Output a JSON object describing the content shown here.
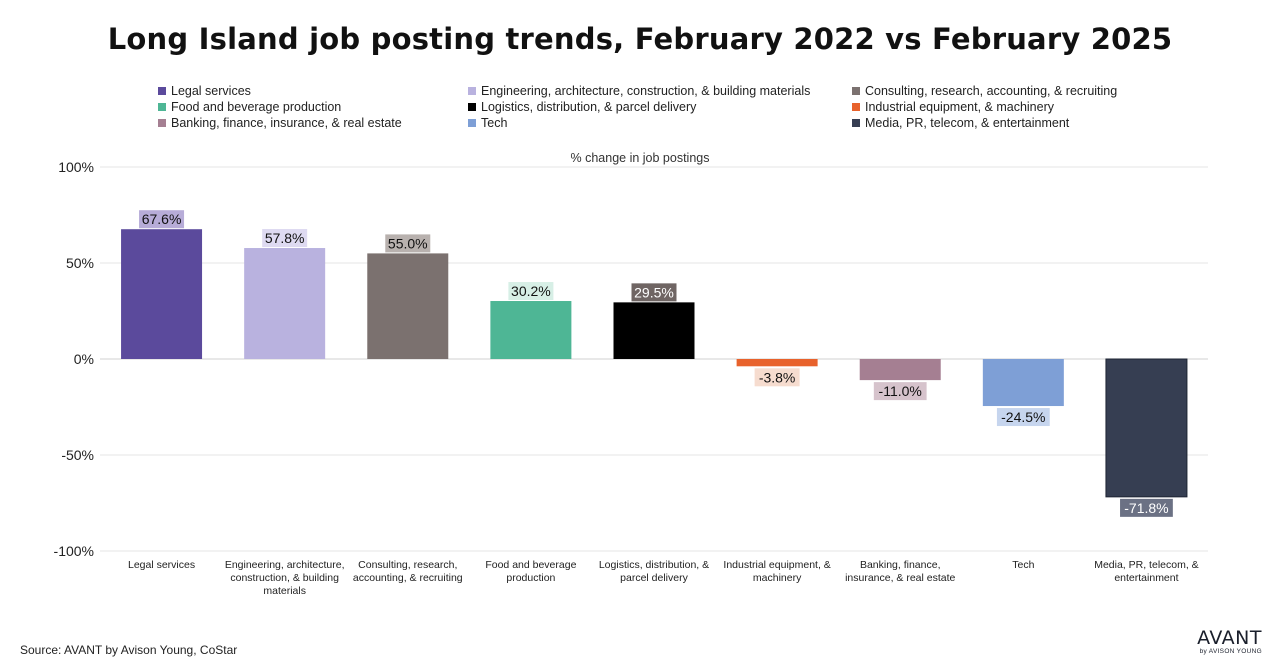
{
  "title": "Long Island job posting trends, February 2022 vs February 2025",
  "source": "Source: AVANT by Avison Young, CoStar",
  "logo": {
    "main": "AVANT",
    "sub": "by AVISON YOUNG"
  },
  "chart_data": {
    "type": "bar",
    "title": "Long Island job posting trends, February 2022 vs February 2025",
    "subtitle": "% change in job postings",
    "ylim": [
      -100,
      100
    ],
    "yticks": [
      100,
      50,
      0,
      -50,
      -100
    ],
    "ytick_labels": [
      "100%",
      "50%",
      "0%",
      "-50%",
      "-100%"
    ],
    "grid": true,
    "legend_position": "top",
    "categories": [
      "Legal services",
      "Engineering, architecture, construction, & building materials",
      "Consulting, research, accounting, & recruiting",
      "Food and beverage production",
      "Logistics, distribution, & parcel delivery",
      "Industrial equipment, & machinery",
      "Banking, finance, insurance, & real estate",
      "Tech",
      "Media, PR, telecom, & entertainment"
    ],
    "category_axis_labels": [
      [
        "Legal services"
      ],
      [
        "Engineering, architecture,",
        "construction, & building",
        "materials"
      ],
      [
        "Consulting, research,",
        "accounting, & recruiting"
      ],
      [
        "Food and beverage",
        "production"
      ],
      [
        "Logistics, distribution, &",
        "parcel delivery"
      ],
      [
        "Industrial equipment, &",
        "machinery"
      ],
      [
        "Banking, finance,",
        "insurance, & real estate"
      ],
      [
        "Tech"
      ],
      [
        "Media, PR, telecom, &",
        "entertainment"
      ]
    ],
    "values": [
      67.6,
      57.8,
      55.0,
      30.2,
      29.5,
      -3.8,
      -11.0,
      -24.5,
      -71.8
    ],
    "data_labels": [
      "67.6%",
      "57.8%",
      "55.0%",
      "30.2%",
      "29.5%",
      "-3.8%",
      "-11.0%",
      "-24.5%",
      "-71.8%"
    ],
    "colors": [
      "#5b4a9c",
      "#b9b2df",
      "#7b716f",
      "#4eb695",
      "#000000",
      "#e8622c",
      "#a57f92",
      "#7e9fd6",
      "#363e52"
    ],
    "label_bg_colors": [
      "#b7acd8",
      "#dedaf1",
      "#b8b1ae",
      "#d7efe6",
      "#6f6563",
      "#f6dccf",
      "#d6c3cc",
      "#c6d5ee",
      "#6b7184"
    ],
    "label_text_colors": [
      "#111111",
      "#111111",
      "#111111",
      "#111111",
      "#ffffff",
      "#111111",
      "#111111",
      "#111111",
      "#ffffff"
    ],
    "legend_order": [
      0,
      1,
      2,
      3,
      4,
      5,
      6,
      7,
      8
    ]
  }
}
